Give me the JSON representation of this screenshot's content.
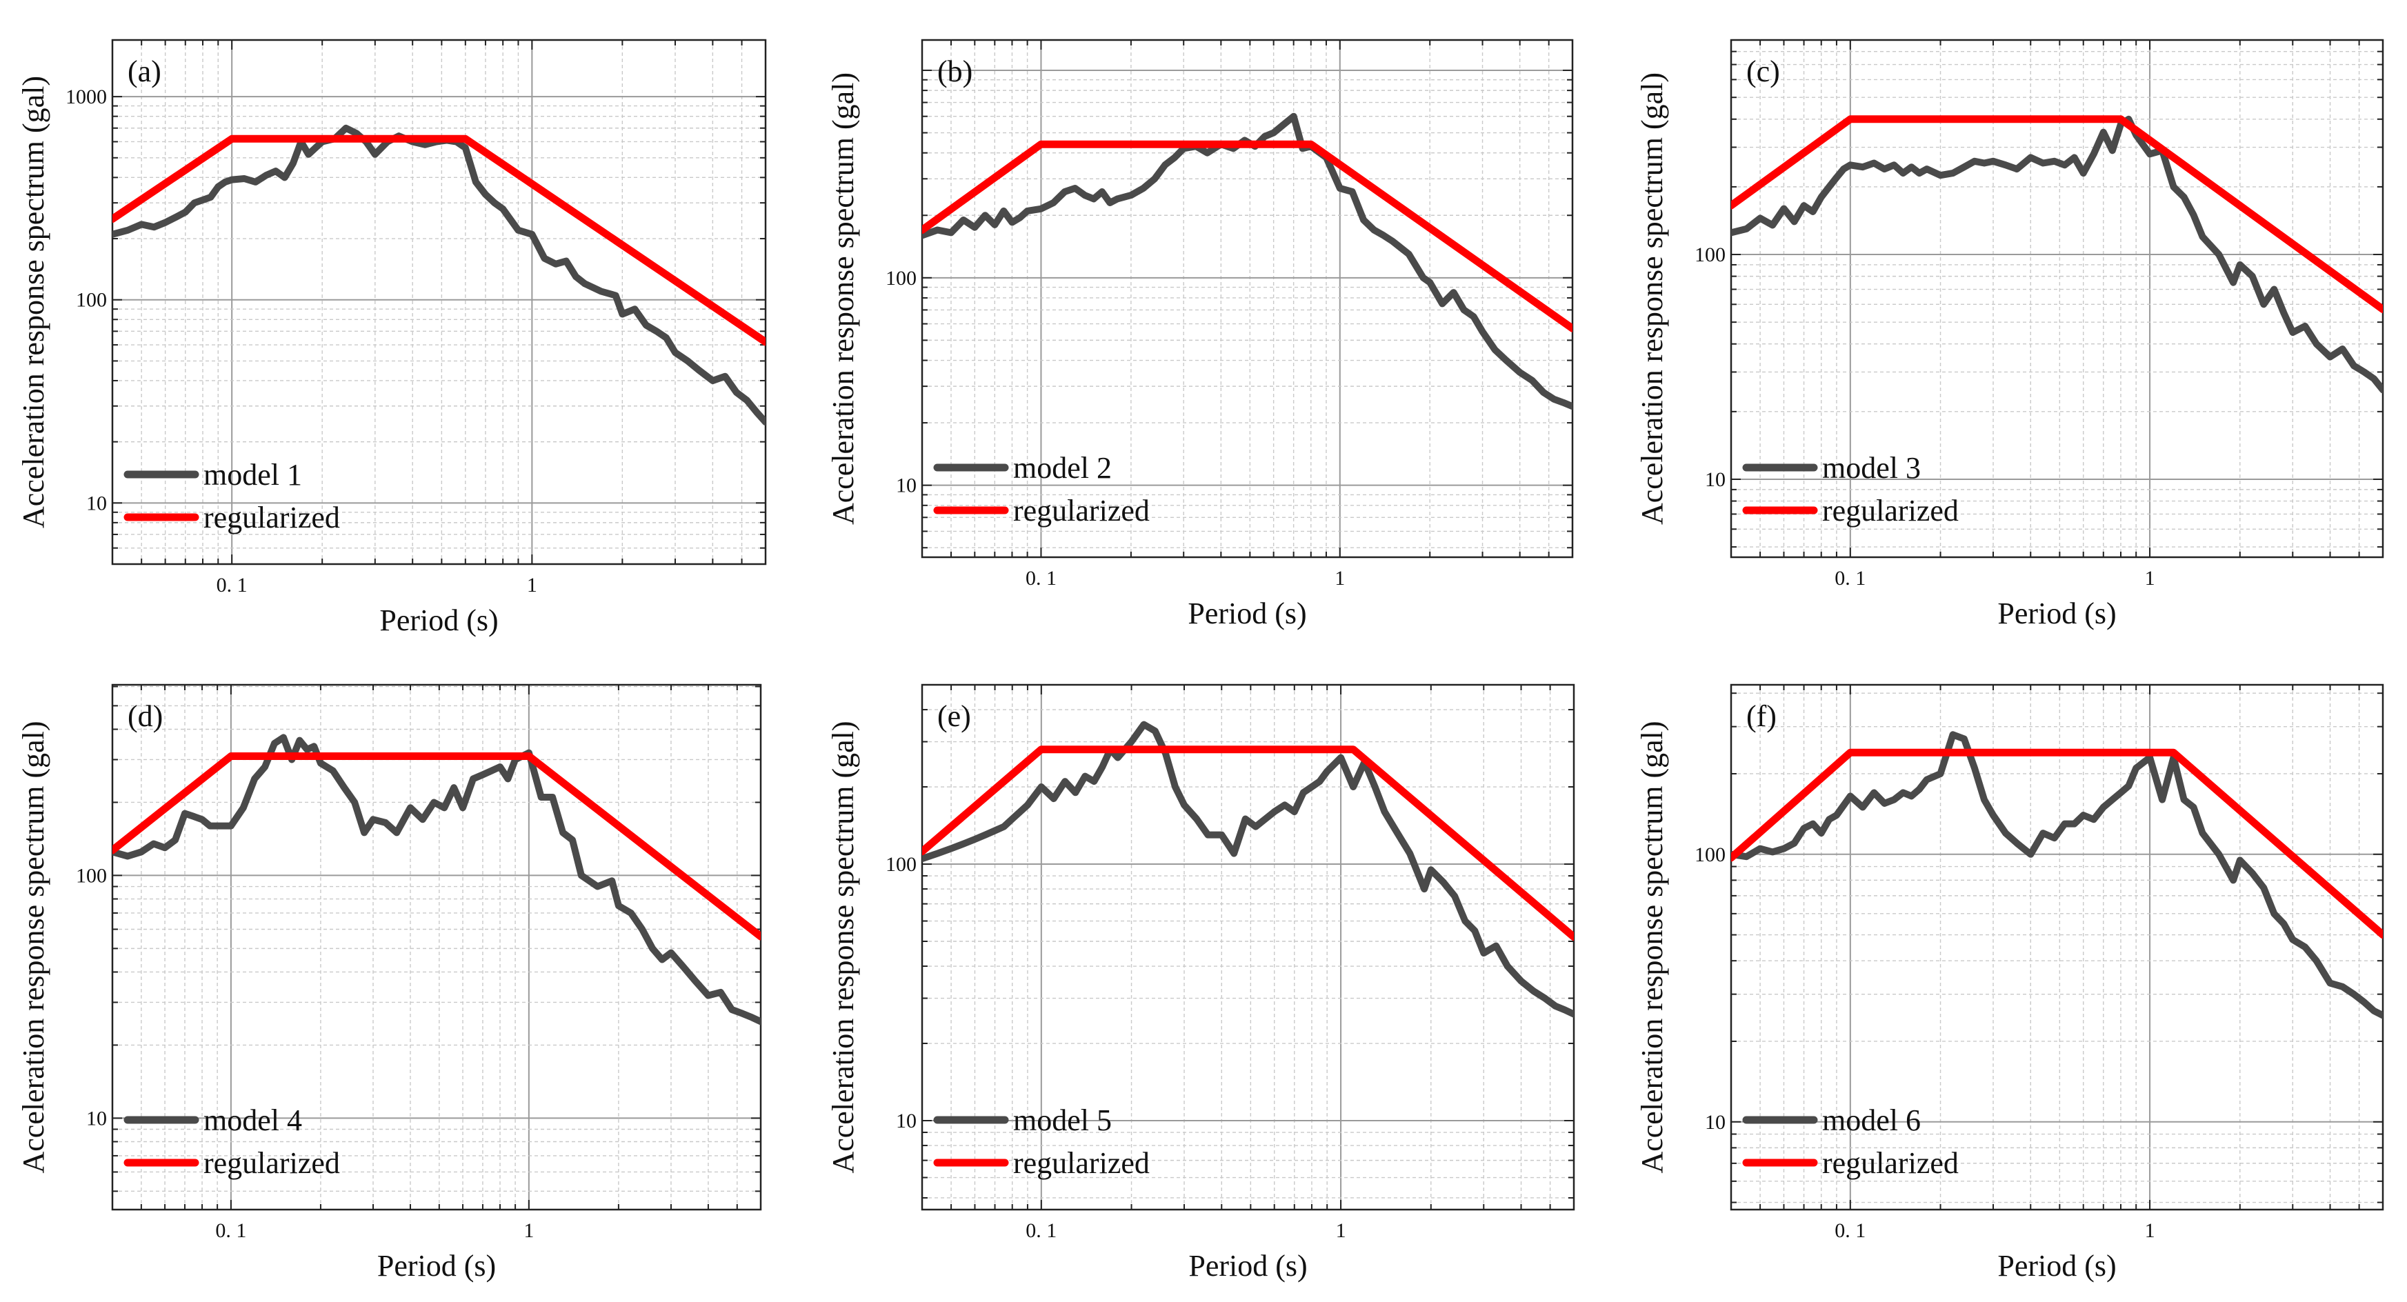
{
  "colors": {
    "model": "#4a4a4a",
    "regularized": "#ff0000",
    "grid_major": "#9a9a9a",
    "grid_minor": "#c9c9c9",
    "frame": "#222222"
  },
  "chart_data": [
    {
      "type": "line",
      "panel": "(a)",
      "xlabel": "Period (s)",
      "ylabel": "Acceleration response spectrum (gal)",
      "xscale": "log",
      "yscale": "log",
      "xlim": [
        0.04,
        6
      ],
      "ylim": [
        5,
        1900
      ],
      "xticks": [
        0.1,
        1
      ],
      "xtick_labels": [
        "0. 1",
        "1"
      ],
      "yticks": [
        10,
        100,
        1000
      ],
      "ytick_labels": [
        "10",
        "100",
        "1000"
      ],
      "legend": {
        "position": "bottom-left",
        "entries": [
          "model 1",
          "regularized"
        ]
      },
      "series": [
        {
          "name": "model 1",
          "x": [
            0.04,
            0.045,
            0.05,
            0.055,
            0.06,
            0.065,
            0.07,
            0.075,
            0.08,
            0.085,
            0.09,
            0.095,
            0.1,
            0.11,
            0.12,
            0.13,
            0.14,
            0.15,
            0.16,
            0.17,
            0.18,
            0.19,
            0.2,
            0.22,
            0.24,
            0.26,
            0.28,
            0.3,
            0.33,
            0.36,
            0.4,
            0.44,
            0.48,
            0.52,
            0.56,
            0.6,
            0.65,
            0.7,
            0.75,
            0.8,
            0.9,
            1.0,
            1.1,
            1.2,
            1.3,
            1.4,
            1.5,
            1.7,
            1.9,
            2.0,
            2.2,
            2.4,
            2.6,
            2.8,
            3.0,
            3.3,
            3.6,
            4.0,
            4.4,
            4.8,
            5.2,
            5.6,
            6.0
          ],
          "y": [
            210,
            220,
            235,
            228,
            240,
            255,
            270,
            300,
            310,
            320,
            360,
            380,
            390,
            395,
            380,
            410,
            430,
            400,
            470,
            600,
            520,
            560,
            600,
            620,
            700,
            660,
            600,
            520,
            600,
            640,
            600,
            580,
            600,
            610,
            600,
            560,
            380,
            330,
            300,
            280,
            220,
            210,
            160,
            150,
            155,
            130,
            120,
            110,
            105,
            85,
            90,
            75,
            70,
            65,
            55,
            50,
            45,
            40,
            42,
            35,
            32,
            28,
            25
          ]
        },
        {
          "name": "regularized",
          "x": [
            0.04,
            0.1,
            0.6,
            6.0
          ],
          "y": [
            250,
            620,
            620,
            62
          ]
        }
      ]
    },
    {
      "type": "line",
      "panel": "(b)",
      "xlabel": "Period (s)",
      "ylabel": "Acceleration response spectrum (gal)",
      "xscale": "log",
      "yscale": "log",
      "xlim": [
        0.04,
        6
      ],
      "ylim": [
        4.5,
        1400
      ],
      "xticks": [
        0.1,
        1
      ],
      "xtick_labels": [
        "0. 1",
        "1"
      ],
      "yticks": [
        10,
        100
      ],
      "ytick_labels": [
        "10",
        "100"
      ],
      "legend": {
        "position": "bottom-left",
        "entries": [
          "model 2",
          "regularized"
        ]
      },
      "series": [
        {
          "name": "model 2",
          "x": [
            0.04,
            0.045,
            0.05,
            0.055,
            0.06,
            0.065,
            0.07,
            0.075,
            0.08,
            0.085,
            0.09,
            0.1,
            0.11,
            0.12,
            0.13,
            0.14,
            0.15,
            0.16,
            0.17,
            0.18,
            0.2,
            0.22,
            0.24,
            0.26,
            0.28,
            0.3,
            0.33,
            0.36,
            0.4,
            0.44,
            0.48,
            0.52,
            0.56,
            0.6,
            0.65,
            0.7,
            0.75,
            0.8,
            0.9,
            1.0,
            1.1,
            1.2,
            1.3,
            1.4,
            1.5,
            1.7,
            1.9,
            2.0,
            2.2,
            2.4,
            2.6,
            2.8,
            3.0,
            3.3,
            3.6,
            4.0,
            4.4,
            4.8,
            5.2,
            5.6,
            6.0
          ],
          "y": [
            160,
            170,
            165,
            190,
            175,
            200,
            180,
            210,
            185,
            195,
            210,
            215,
            230,
            260,
            270,
            250,
            240,
            260,
            230,
            240,
            250,
            270,
            300,
            350,
            380,
            420,
            430,
            400,
            440,
            420,
            460,
            430,
            480,
            500,
            550,
            600,
            420,
            430,
            380,
            270,
            260,
            190,
            170,
            160,
            150,
            130,
            100,
            95,
            75,
            85,
            70,
            65,
            55,
            45,
            40,
            35,
            32,
            28,
            26,
            25,
            24
          ]
        },
        {
          "name": "regularized",
          "x": [
            0.04,
            0.1,
            0.8,
            6.0
          ],
          "y": [
            170,
            440,
            440,
            57
          ]
        }
      ]
    },
    {
      "type": "line",
      "panel": "(c)",
      "xlabel": "Period (s)",
      "ylabel": "Acceleration response spectrum (gal)",
      "xscale": "log",
      "yscale": "log",
      "xlim": [
        0.04,
        6
      ],
      "ylim": [
        4.5,
        900
      ],
      "xticks": [
        0.1,
        1
      ],
      "xtick_labels": [
        "0. 1",
        "1"
      ],
      "yticks": [
        10,
        100
      ],
      "ytick_labels": [
        "10",
        "100"
      ],
      "legend": {
        "position": "bottom-left",
        "entries": [
          "model 3",
          "regularized"
        ]
      },
      "series": [
        {
          "name": "model 3",
          "x": [
            0.04,
            0.045,
            0.05,
            0.055,
            0.06,
            0.065,
            0.07,
            0.075,
            0.08,
            0.085,
            0.09,
            0.095,
            0.1,
            0.11,
            0.12,
            0.13,
            0.14,
            0.15,
            0.16,
            0.17,
            0.18,
            0.2,
            0.22,
            0.24,
            0.26,
            0.28,
            0.3,
            0.33,
            0.36,
            0.4,
            0.44,
            0.48,
            0.52,
            0.56,
            0.6,
            0.65,
            0.7,
            0.75,
            0.8,
            0.85,
            0.9,
            1.0,
            1.1,
            1.2,
            1.3,
            1.4,
            1.5,
            1.7,
            1.9,
            2.0,
            2.2,
            2.4,
            2.6,
            2.8,
            3.0,
            3.3,
            3.6,
            4.0,
            4.4,
            4.8,
            5.2,
            5.6,
            6.0
          ],
          "y": [
            125,
            130,
            145,
            135,
            160,
            140,
            165,
            155,
            180,
            200,
            220,
            240,
            250,
            245,
            255,
            240,
            250,
            230,
            245,
            230,
            240,
            225,
            230,
            245,
            260,
            255,
            260,
            250,
            240,
            270,
            255,
            260,
            250,
            270,
            230,
            280,
            350,
            290,
            380,
            400,
            340,
            280,
            290,
            200,
            180,
            150,
            120,
            100,
            75,
            90,
            80,
            60,
            70,
            55,
            45,
            48,
            40,
            35,
            38,
            32,
            30,
            28,
            25
          ]
        },
        {
          "name": "regularized",
          "x": [
            0.04,
            0.1,
            0.8,
            6.0
          ],
          "y": [
            165,
            400,
            400,
            57
          ]
        }
      ]
    },
    {
      "type": "line",
      "panel": "(d)",
      "xlabel": "Period (s)",
      "ylabel": "Acceleration response spectrum (gal)",
      "xscale": "log",
      "yscale": "log",
      "xlim": [
        0.04,
        6
      ],
      "ylim": [
        4.2,
        610
      ],
      "xticks": [
        0.1,
        1
      ],
      "xtick_labels": [
        "0. 1",
        "1"
      ],
      "yticks": [
        10,
        100
      ],
      "ytick_labels": [
        "10",
        "100"
      ],
      "legend": {
        "position": "bottom-left",
        "entries": [
          "model 4",
          "regularized"
        ]
      },
      "series": [
        {
          "name": "model 4",
          "x": [
            0.04,
            0.045,
            0.05,
            0.055,
            0.06,
            0.065,
            0.07,
            0.075,
            0.08,
            0.085,
            0.09,
            0.1,
            0.11,
            0.12,
            0.13,
            0.14,
            0.15,
            0.16,
            0.17,
            0.18,
            0.19,
            0.2,
            0.22,
            0.24,
            0.26,
            0.28,
            0.3,
            0.33,
            0.36,
            0.4,
            0.44,
            0.48,
            0.52,
            0.56,
            0.6,
            0.65,
            0.7,
            0.75,
            0.8,
            0.85,
            0.9,
            1.0,
            1.1,
            1.2,
            1.3,
            1.4,
            1.5,
            1.7,
            1.9,
            2.0,
            2.2,
            2.4,
            2.6,
            2.8,
            3.0,
            3.3,
            3.6,
            4.0,
            4.4,
            4.8,
            5.2,
            5.6,
            6.0
          ],
          "y": [
            125,
            120,
            125,
            135,
            130,
            140,
            180,
            175,
            170,
            160,
            160,
            160,
            190,
            250,
            280,
            350,
            370,
            300,
            360,
            330,
            340,
            290,
            270,
            230,
            200,
            150,
            170,
            165,
            150,
            190,
            170,
            200,
            190,
            230,
            190,
            250,
            260,
            270,
            280,
            250,
            300,
            320,
            210,
            210,
            150,
            140,
            100,
            90,
            95,
            75,
            70,
            60,
            50,
            45,
            48,
            42,
            37,
            32,
            33,
            28,
            27,
            26,
            25
          ]
        },
        {
          "name": "regularized",
          "x": [
            0.04,
            0.1,
            1.0,
            6.0
          ],
          "y": [
            127,
            310,
            310,
            56
          ]
        }
      ]
    },
    {
      "type": "line",
      "panel": "(e)",
      "xlabel": "Period (s)",
      "ylabel": "Acceleration response spectrum (gal)",
      "xscale": "log",
      "yscale": "log",
      "xlim": [
        0.04,
        6
      ],
      "ylim": [
        4.5,
        500
      ],
      "xticks": [
        0.1,
        1
      ],
      "xtick_labels": [
        "0. 1",
        "1"
      ],
      "yticks": [
        10,
        100
      ],
      "ytick_labels": [
        "10",
        "100"
      ],
      "legend": {
        "position": "bottom-left",
        "entries": [
          "model 5",
          "regularized"
        ]
      },
      "series": [
        {
          "name": "model 5",
          "x": [
            0.04,
            0.045,
            0.05,
            0.055,
            0.06,
            0.065,
            0.07,
            0.075,
            0.08,
            0.085,
            0.09,
            0.1,
            0.11,
            0.12,
            0.13,
            0.14,
            0.15,
            0.16,
            0.17,
            0.18,
            0.2,
            0.22,
            0.24,
            0.26,
            0.28,
            0.3,
            0.33,
            0.36,
            0.4,
            0.44,
            0.48,
            0.52,
            0.56,
            0.6,
            0.65,
            0.7,
            0.75,
            0.8,
            0.85,
            0.9,
            1.0,
            1.1,
            1.2,
            1.3,
            1.4,
            1.5,
            1.7,
            1.9,
            2.0,
            2.2,
            2.4,
            2.6,
            2.8,
            3.0,
            3.3,
            3.6,
            4.0,
            4.4,
            4.8,
            5.2,
            5.6,
            6.0
          ],
          "y": [
            105,
            110,
            115,
            120,
            125,
            130,
            135,
            140,
            150,
            160,
            170,
            200,
            180,
            210,
            190,
            220,
            210,
            240,
            280,
            260,
            300,
            350,
            330,
            270,
            200,
            170,
            150,
            130,
            130,
            110,
            150,
            140,
            150,
            160,
            170,
            160,
            190,
            200,
            210,
            230,
            260,
            200,
            250,
            200,
            160,
            140,
            110,
            80,
            95,
            85,
            75,
            60,
            55,
            45,
            48,
            40,
            35,
            32,
            30,
            28,
            27,
            26
          ]
        },
        {
          "name": "regularized",
          "x": [
            0.04,
            0.1,
            1.1,
            6.0
          ],
          "y": [
            112,
            280,
            280,
            52
          ]
        }
      ]
    },
    {
      "type": "line",
      "panel": "(f)",
      "xlabel": "Period (s)",
      "ylabel": "Acceleration response spectrum (gal)",
      "xscale": "log",
      "yscale": "log",
      "xlim": [
        0.04,
        6
      ],
      "ylim": [
        4.7,
        430
      ],
      "xticks": [
        0.1,
        1
      ],
      "xtick_labels": [
        "0. 1",
        "1"
      ],
      "yticks": [
        10,
        100
      ],
      "ytick_labels": [
        "10",
        "100"
      ],
      "legend": {
        "position": "bottom-left",
        "entries": [
          "model 6",
          "regularized"
        ]
      },
      "series": [
        {
          "name": "model 6",
          "x": [
            0.04,
            0.045,
            0.05,
            0.055,
            0.06,
            0.065,
            0.07,
            0.075,
            0.08,
            0.085,
            0.09,
            0.1,
            0.11,
            0.12,
            0.13,
            0.14,
            0.15,
            0.16,
            0.17,
            0.18,
            0.2,
            0.22,
            0.24,
            0.26,
            0.28,
            0.3,
            0.33,
            0.36,
            0.4,
            0.44,
            0.48,
            0.52,
            0.56,
            0.6,
            0.65,
            0.7,
            0.75,
            0.8,
            0.85,
            0.9,
            1.0,
            1.1,
            1.2,
            1.3,
            1.4,
            1.5,
            1.7,
            1.9,
            2.0,
            2.2,
            2.4,
            2.6,
            2.8,
            3.0,
            3.3,
            3.6,
            4.0,
            4.4,
            4.8,
            5.2,
            5.6,
            6.0
          ],
          "y": [
            100,
            98,
            105,
            102,
            105,
            110,
            125,
            130,
            120,
            135,
            140,
            165,
            150,
            170,
            155,
            160,
            170,
            165,
            175,
            190,
            200,
            280,
            270,
            210,
            160,
            140,
            120,
            110,
            100,
            120,
            115,
            130,
            130,
            140,
            135,
            150,
            160,
            170,
            180,
            210,
            230,
            160,
            230,
            160,
            150,
            120,
            100,
            80,
            95,
            85,
            75,
            60,
            55,
            48,
            45,
            40,
            33,
            32,
            30,
            28,
            26,
            25
          ]
        },
        {
          "name": "regularized",
          "x": [
            0.04,
            0.1,
            1.2,
            6.0
          ],
          "y": [
            97,
            240,
            240,
            50
          ]
        }
      ]
    }
  ]
}
